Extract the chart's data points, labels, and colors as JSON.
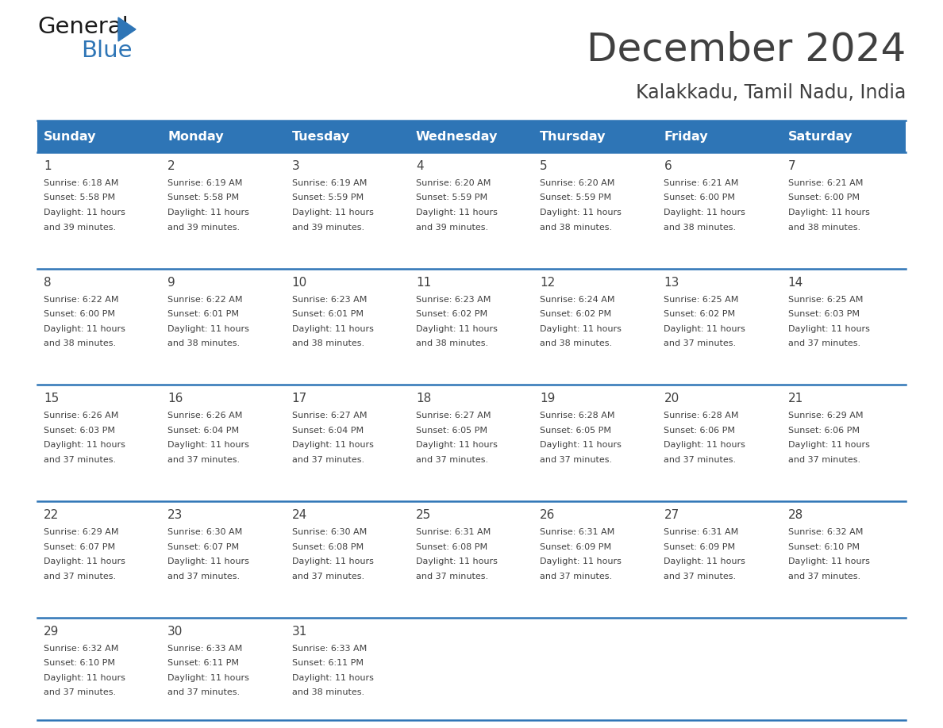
{
  "title": "December 2024",
  "subtitle": "Kalakkadu, Tamil Nadu, India",
  "header_color": "#2e75b6",
  "header_text_color": "#ffffff",
  "bg_color": "#ffffff",
  "cell_bg_color": "#dce6f1",
  "week_bg_color": "#ffffff",
  "text_color": "#404040",
  "line_color": "#2e75b6",
  "days_of_week": [
    "Sunday",
    "Monday",
    "Tuesday",
    "Wednesday",
    "Thursday",
    "Friday",
    "Saturday"
  ],
  "calendar_data": [
    [
      {
        "day": "1",
        "sunrise": "6:18 AM",
        "sunset": "5:58 PM",
        "daylight_h": "11",
        "daylight_m": "39"
      },
      {
        "day": "2",
        "sunrise": "6:19 AM",
        "sunset": "5:58 PM",
        "daylight_h": "11",
        "daylight_m": "39"
      },
      {
        "day": "3",
        "sunrise": "6:19 AM",
        "sunset": "5:59 PM",
        "daylight_h": "11",
        "daylight_m": "39"
      },
      {
        "day": "4",
        "sunrise": "6:20 AM",
        "sunset": "5:59 PM",
        "daylight_h": "11",
        "daylight_m": "39"
      },
      {
        "day": "5",
        "sunrise": "6:20 AM",
        "sunset": "5:59 PM",
        "daylight_h": "11",
        "daylight_m": "38"
      },
      {
        "day": "6",
        "sunrise": "6:21 AM",
        "sunset": "6:00 PM",
        "daylight_h": "11",
        "daylight_m": "38"
      },
      {
        "day": "7",
        "sunrise": "6:21 AM",
        "sunset": "6:00 PM",
        "daylight_h": "11",
        "daylight_m": "38"
      }
    ],
    [
      {
        "day": "8",
        "sunrise": "6:22 AM",
        "sunset": "6:00 PM",
        "daylight_h": "11",
        "daylight_m": "38"
      },
      {
        "day": "9",
        "sunrise": "6:22 AM",
        "sunset": "6:01 PM",
        "daylight_h": "11",
        "daylight_m": "38"
      },
      {
        "day": "10",
        "sunrise": "6:23 AM",
        "sunset": "6:01 PM",
        "daylight_h": "11",
        "daylight_m": "38"
      },
      {
        "day": "11",
        "sunrise": "6:23 AM",
        "sunset": "6:02 PM",
        "daylight_h": "11",
        "daylight_m": "38"
      },
      {
        "day": "12",
        "sunrise": "6:24 AM",
        "sunset": "6:02 PM",
        "daylight_h": "11",
        "daylight_m": "38"
      },
      {
        "day": "13",
        "sunrise": "6:25 AM",
        "sunset": "6:02 PM",
        "daylight_h": "11",
        "daylight_m": "37"
      },
      {
        "day": "14",
        "sunrise": "6:25 AM",
        "sunset": "6:03 PM",
        "daylight_h": "11",
        "daylight_m": "37"
      }
    ],
    [
      {
        "day": "15",
        "sunrise": "6:26 AM",
        "sunset": "6:03 PM",
        "daylight_h": "11",
        "daylight_m": "37"
      },
      {
        "day": "16",
        "sunrise": "6:26 AM",
        "sunset": "6:04 PM",
        "daylight_h": "11",
        "daylight_m": "37"
      },
      {
        "day": "17",
        "sunrise": "6:27 AM",
        "sunset": "6:04 PM",
        "daylight_h": "11",
        "daylight_m": "37"
      },
      {
        "day": "18",
        "sunrise": "6:27 AM",
        "sunset": "6:05 PM",
        "daylight_h": "11",
        "daylight_m": "37"
      },
      {
        "day": "19",
        "sunrise": "6:28 AM",
        "sunset": "6:05 PM",
        "daylight_h": "11",
        "daylight_m": "37"
      },
      {
        "day": "20",
        "sunrise": "6:28 AM",
        "sunset": "6:06 PM",
        "daylight_h": "11",
        "daylight_m": "37"
      },
      {
        "day": "21",
        "sunrise": "6:29 AM",
        "sunset": "6:06 PM",
        "daylight_h": "11",
        "daylight_m": "37"
      }
    ],
    [
      {
        "day": "22",
        "sunrise": "6:29 AM",
        "sunset": "6:07 PM",
        "daylight_h": "11",
        "daylight_m": "37"
      },
      {
        "day": "23",
        "sunrise": "6:30 AM",
        "sunset": "6:07 PM",
        "daylight_h": "11",
        "daylight_m": "37"
      },
      {
        "day": "24",
        "sunrise": "6:30 AM",
        "sunset": "6:08 PM",
        "daylight_h": "11",
        "daylight_m": "37"
      },
      {
        "day": "25",
        "sunrise": "6:31 AM",
        "sunset": "6:08 PM",
        "daylight_h": "11",
        "daylight_m": "37"
      },
      {
        "day": "26",
        "sunrise": "6:31 AM",
        "sunset": "6:09 PM",
        "daylight_h": "11",
        "daylight_m": "37"
      },
      {
        "day": "27",
        "sunrise": "6:31 AM",
        "sunset": "6:09 PM",
        "daylight_h": "11",
        "daylight_m": "37"
      },
      {
        "day": "28",
        "sunrise": "6:32 AM",
        "sunset": "6:10 PM",
        "daylight_h": "11",
        "daylight_m": "37"
      }
    ],
    [
      {
        "day": "29",
        "sunrise": "6:32 AM",
        "sunset": "6:10 PM",
        "daylight_h": "11",
        "daylight_m": "37"
      },
      {
        "day": "30",
        "sunrise": "6:33 AM",
        "sunset": "6:11 PM",
        "daylight_h": "11",
        "daylight_m": "37"
      },
      {
        "day": "31",
        "sunrise": "6:33 AM",
        "sunset": "6:11 PM",
        "daylight_h": "11",
        "daylight_m": "38"
      },
      null,
      null,
      null,
      null
    ]
  ],
  "logo_color_general": "#1a1a1a",
  "logo_color_blue": "#2e75b6",
  "logo_triangle_color": "#2e75b6"
}
